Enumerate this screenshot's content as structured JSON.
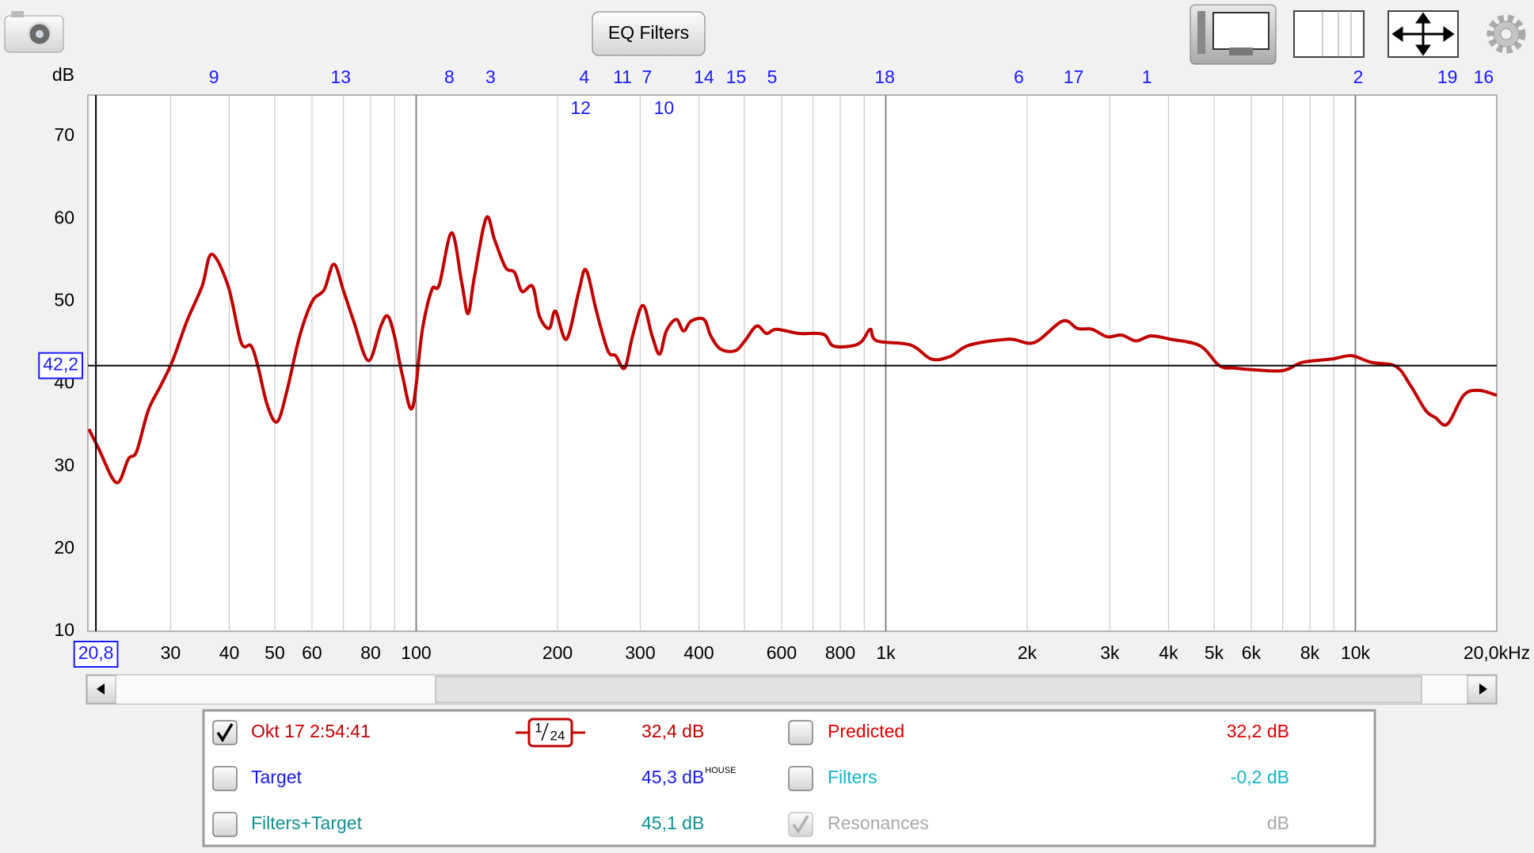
{
  "toolbar": {
    "eq_button": "EQ Filters"
  },
  "chart_data": {
    "type": "line",
    "y_unit": "dB",
    "log_x": true,
    "x": [
      20.1,
      21.1,
      23.0,
      24.4,
      25.4,
      26.9,
      28.6,
      30.3,
      32.5,
      35.0,
      36.7,
      39.8,
      42.4,
      44.5,
      46.0,
      48.2,
      50.6,
      53.1,
      56.5,
      60.1,
      63.7,
      66.8,
      70.1,
      73.6,
      79.1,
      84.1,
      87.0,
      89.9,
      93.5,
      98.2,
      103,
      108,
      112,
      119,
      125,
      129,
      133,
      141,
      147,
      155,
      162,
      168,
      177,
      183,
      192,
      198,
      209,
      222,
      230,
      242,
      256,
      266,
      278,
      289,
      304,
      318,
      330,
      341,
      358,
      371,
      385,
      410,
      424,
      445,
      478,
      501,
      531,
      557,
      585,
      653,
      736,
      772,
      849,
      891,
      927,
      957,
      1130,
      1250,
      1370,
      1510,
      1830,
      2070,
      2380,
      2560,
      2750,
      2960,
      3180,
      3410,
      3670,
      4040,
      4670,
      5130,
      5520,
      6070,
      7010,
      7720,
      8910,
      9810,
      10800,
      12200,
      13100,
      14100,
      14800,
      15700,
      17000,
      18300,
      20000
    ],
    "series": [
      {
        "name": "Okt 17 2:54:41",
        "color": "#c00000",
        "values": [
          34.5,
          32.1,
          28.0,
          30.9,
          31.8,
          36.8,
          39.8,
          42.8,
          47.6,
          51.8,
          55.7,
          51.8,
          45.0,
          44.6,
          42.2,
          37.4,
          35.4,
          39.2,
          45.8,
          50.0,
          51.4,
          54.5,
          51.2,
          47.6,
          42.8,
          47.0,
          48.2,
          45.8,
          41.0,
          37.1,
          46.4,
          51.4,
          52.0,
          58.3,
          52.3,
          48.5,
          52.9,
          60.1,
          57.4,
          54.1,
          53.5,
          51.2,
          51.8,
          48.2,
          46.7,
          48.8,
          45.4,
          51.2,
          53.8,
          48.8,
          44.0,
          43.4,
          41.9,
          45.8,
          49.5,
          45.8,
          43.6,
          46.4,
          47.8,
          46.4,
          47.6,
          47.8,
          45.8,
          44.2,
          44.0,
          45.2,
          47.0,
          46.1,
          46.6,
          46.1,
          46.0,
          44.6,
          44.6,
          45.2,
          46.6,
          45.2,
          44.7,
          43.0,
          43.3,
          44.7,
          45.4,
          45.0,
          47.6,
          46.7,
          46.6,
          45.7,
          45.9,
          45.2,
          45.8,
          45.4,
          44.6,
          42.2,
          41.9,
          41.7,
          41.6,
          42.6,
          43.0,
          43.4,
          42.6,
          42.1,
          39.8,
          36.8,
          35.9,
          35.1,
          38.6,
          39.2,
          38.6
        ]
      }
    ],
    "xlim": [
      20,
      20000
    ],
    "xticks": [
      30,
      40,
      50,
      60,
      80,
      100,
      200,
      300,
      400,
      600,
      800,
      {
        "value": 1000,
        "label": "1k"
      },
      {
        "value": 2000,
        "label": "2k"
      },
      {
        "value": 3000,
        "label": "3k"
      },
      {
        "value": 4000,
        "label": "4k"
      },
      {
        "value": 5000,
        "label": "5k"
      },
      {
        "value": 6000,
        "label": "6k"
      },
      {
        "value": 8000,
        "label": "8k"
      },
      {
        "value": 10000,
        "label": "10k"
      },
      {
        "value": 20000,
        "label": "20,0kHz"
      }
    ],
    "xminor": [
      70,
      90,
      500,
      700,
      900,
      7000,
      9000
    ],
    "ylim": [
      10,
      75
    ],
    "yticks": [
      10,
      20,
      30,
      40,
      50,
      60,
      70
    ],
    "cursor": {
      "x": 20.8,
      "x_label": "20,8",
      "y": 42.2,
      "y_label": "42,2"
    },
    "filter_markers": [
      {
        "label": "9",
        "x": 37.1
      },
      {
        "label": "13",
        "x": 69.1
      },
      {
        "label": "8",
        "x": 117.7
      },
      {
        "label": "3",
        "x": 144
      },
      {
        "label": "4",
        "x": 228
      },
      {
        "label": "12",
        "x": 224
      },
      {
        "label": "11",
        "x": 275
      },
      {
        "label": "7",
        "x": 310
      },
      {
        "label": "10",
        "x": 337
      },
      {
        "label": "14",
        "x": 410
      },
      {
        "label": "15",
        "x": 480
      },
      {
        "label": "5",
        "x": 573
      },
      {
        "label": "18",
        "x": 995
      },
      {
        "label": "6",
        "x": 1920
      },
      {
        "label": "17",
        "x": 2512
      },
      {
        "label": "1",
        "x": 3597
      },
      {
        "label": "2",
        "x": 10140
      },
      {
        "label": "19",
        "x": 15700
      },
      {
        "label": "16",
        "x": 18750
      }
    ]
  },
  "legend_panel": {
    "series_entry": {
      "value": "32,4 dB",
      "checked": true
    },
    "smoothing": {
      "num": "1",
      "den": "24"
    },
    "others": [
      {
        "label": "Predicted",
        "value": "32,2 dB",
        "checked": false,
        "color": "#e00000"
      },
      {
        "label": "Target",
        "value": "45,3 dB",
        "sup": "HOUSE",
        "checked": false,
        "color": "#1a1aee"
      },
      {
        "label": "Filters",
        "value": "-0,2 dB",
        "checked": false,
        "color": "#12b4c8"
      },
      {
        "label": "Filters+Target",
        "value": "45,1 dB",
        "checked": false,
        "color": "#0f9090"
      },
      {
        "label": "Resonances",
        "value": "dB",
        "checked": true,
        "disabled": true,
        "color": "#a8a8a8"
      }
    ]
  }
}
